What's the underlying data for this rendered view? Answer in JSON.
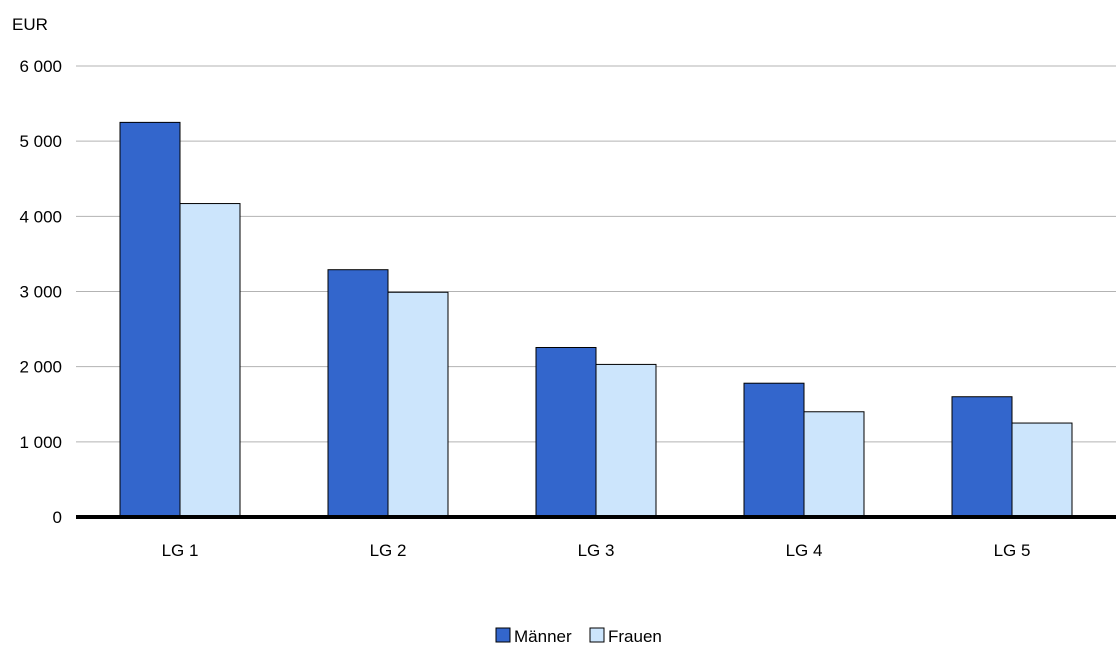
{
  "chart_data": {
    "type": "bar",
    "unit_label": "EUR",
    "categories": [
      "LG 1",
      "LG 2",
      "LG 3",
      "LG 4",
      "LG 5"
    ],
    "series": [
      {
        "name": "Männer",
        "color": "#3366cc",
        "values": [
          5250,
          3290,
          2255,
          1780,
          1600
        ]
      },
      {
        "name": "Frauen",
        "color": "#cce5fc",
        "values": [
          4170,
          2990,
          2030,
          1400,
          1250
        ]
      }
    ],
    "ylim": [
      0,
      6000
    ],
    "yticks": [
      0,
      1000,
      2000,
      3000,
      4000,
      5000,
      6000
    ],
    "ytick_labels": [
      "0",
      "1 000",
      "2 000",
      "3 000",
      "4 000",
      "5 000",
      "6 000"
    ],
    "grid": true,
    "legend_position": "bottom"
  }
}
